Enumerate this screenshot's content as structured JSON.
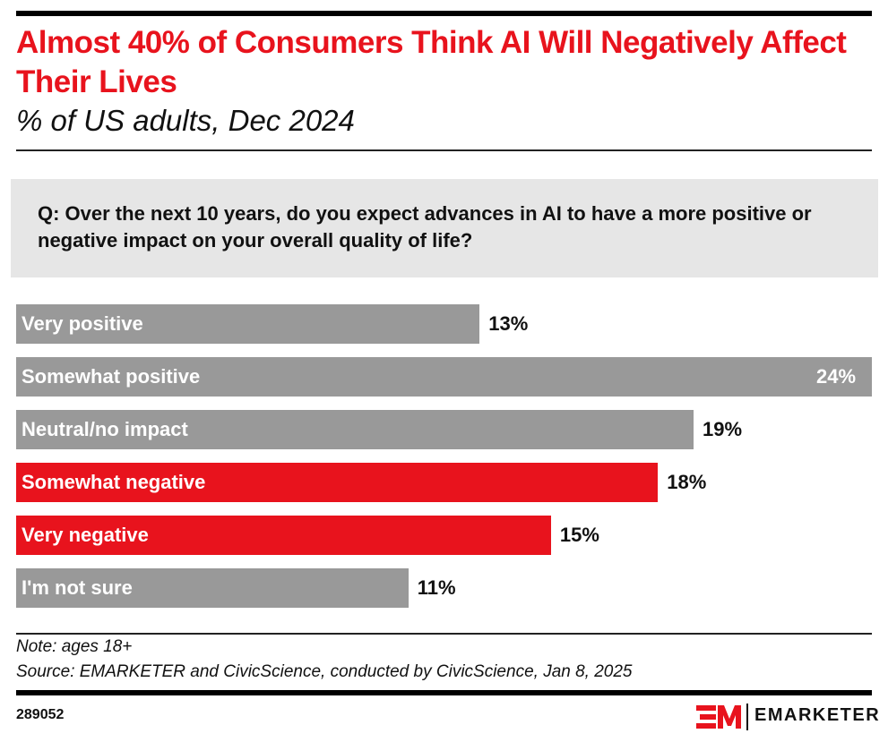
{
  "title": "Almost 40% of Consumers Think AI Will Negatively Affect Their Lives",
  "subtitle": "% of US adults, Dec 2024",
  "question": "Q: Over the next 10 years, do you expect advances in AI to have a more positive or negative impact on your overall quality of life?",
  "note": "Note: ages 18+",
  "source": "Source: EMARKETER and CivicScience, conducted by CivicScience, Jan 8, 2025",
  "chart_id": "289052",
  "brand": "EMARKETER",
  "logo_text": "EM",
  "colors": {
    "accent": "#e8131d",
    "neutral": "#999999"
  },
  "chart_data": {
    "type": "bar",
    "orientation": "horizontal",
    "categories": [
      "Very positive",
      "Somewhat positive",
      "Neutral/no impact",
      "Somewhat negative",
      "Very negative",
      "I'm not sure"
    ],
    "values": [
      13,
      24,
      19,
      18,
      15,
      11
    ],
    "value_labels": [
      "13%",
      "24%",
      "19%",
      "18%",
      "15%",
      "11%"
    ],
    "highlighted": [
      false,
      false,
      false,
      true,
      true,
      false
    ],
    "grid": false
  }
}
